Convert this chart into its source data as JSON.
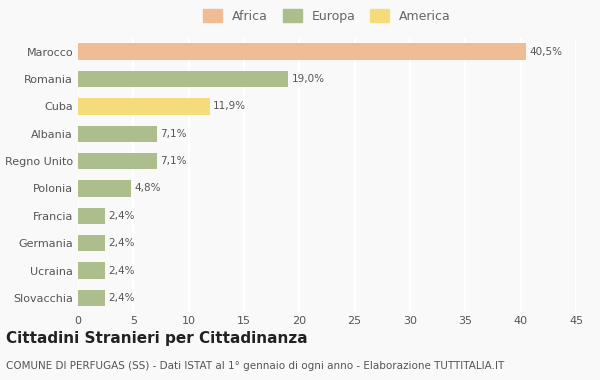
{
  "categories": [
    "Marocco",
    "Romania",
    "Cuba",
    "Albania",
    "Regno Unito",
    "Polonia",
    "Francia",
    "Germania",
    "Ucraina",
    "Slovacchia"
  ],
  "values": [
    40.5,
    19.0,
    11.9,
    7.1,
    7.1,
    4.8,
    2.4,
    2.4,
    2.4,
    2.4
  ],
  "labels": [
    "40,5%",
    "19,0%",
    "11,9%",
    "7,1%",
    "7,1%",
    "4,8%",
    "2,4%",
    "2,4%",
    "2,4%",
    "2,4%"
  ],
  "colors": [
    "#F0BC94",
    "#ABBE8B",
    "#F5DC7A",
    "#ABBE8B",
    "#ABBE8B",
    "#ABBE8B",
    "#ABBE8B",
    "#ABBE8B",
    "#ABBE8B",
    "#ABBE8B"
  ],
  "legend_labels": [
    "Africa",
    "Europa",
    "America"
  ],
  "legend_colors": [
    "#F0BC94",
    "#ABBE8B",
    "#F5DC7A"
  ],
  "title": "Cittadini Stranieri per Cittadinanza",
  "subtitle": "COMUNE DI PERFUGAS (SS) - Dati ISTAT al 1° gennaio di ogni anno - Elaborazione TUTTITALIA.IT",
  "xlim": [
    0,
    45
  ],
  "xticks": [
    0,
    5,
    10,
    15,
    20,
    25,
    30,
    35,
    40,
    45
  ],
  "background_color": "#f9f9f9",
  "grid_color": "#ffffff",
  "bar_height": 0.6,
  "title_fontsize": 11,
  "subtitle_fontsize": 7.5,
  "label_fontsize": 7.5,
  "tick_fontsize": 8,
  "legend_fontsize": 9
}
